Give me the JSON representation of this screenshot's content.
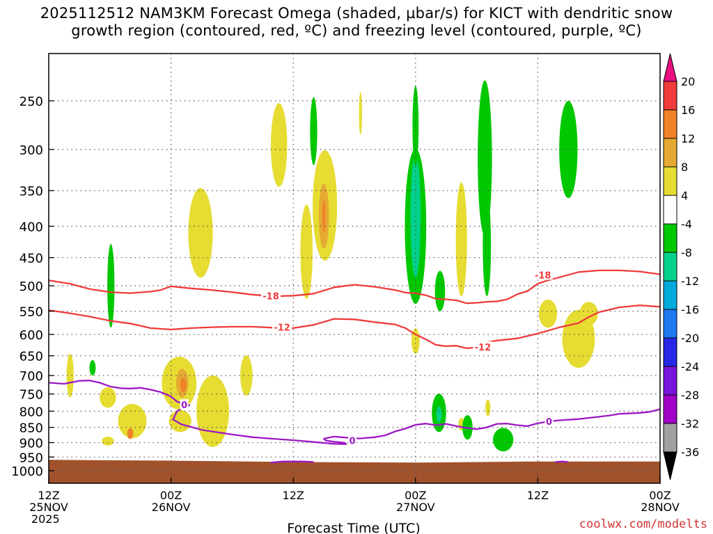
{
  "title_line1": "2025112512 NAM3KM Forecast Omega (shaded, µbar/s) for KICT with dendritic snow",
  "title_line2": "growth region (contoured, red, ºC) and freezing level (contoured, purple, ºC)",
  "credit": "coolwx.com/modelts",
  "chart_data": {
    "type": "heatmap",
    "title": "2025112512 NAM3KM Forecast Omega (shaded, µbar/s) for KICT with dendritic snow growth region (contoured, red, ºC) and freezing level (contoured, purple, ºC)",
    "xlabel": "Forecast Time (UTC)",
    "ylabel": "",
    "x_unit": "forecast hour",
    "xlim": [
      0,
      60
    ],
    "y_unit": "hPa",
    "ylim": [
      1050,
      200
    ],
    "y_ticks": [
      250,
      300,
      350,
      400,
      450,
      500,
      550,
      600,
      650,
      700,
      750,
      800,
      850,
      900,
      950,
      1000
    ],
    "x_ticks": [
      {
        "hour": 0,
        "lines": [
          "12Z",
          "25NOV",
          "2025"
        ]
      },
      {
        "hour": 12,
        "lines": [
          "00Z",
          "26NOV"
        ]
      },
      {
        "hour": 24,
        "lines": [
          "12Z"
        ]
      },
      {
        "hour": 36,
        "lines": [
          "00Z",
          "27NOV"
        ]
      },
      {
        "hour": 48,
        "lines": [
          "12Z"
        ]
      },
      {
        "hour": 60,
        "lines": [
          "00Z",
          "28NOV"
        ]
      }
    ],
    "grid": true,
    "colorbar": {
      "labels": [
        "20",
        "16",
        "12",
        "8",
        "4",
        "-4",
        "-8",
        "-12",
        "-16",
        "-20",
        "-24",
        "-28",
        "-32",
        "-36"
      ],
      "colors": [
        "#e8117f",
        "#f03c3c",
        "#f08228",
        "#e6aa32",
        "#e6dc32",
        "#ffffff",
        "#00c800",
        "#00d28c",
        "#00aadc",
        "#1e78f0",
        "#2828e6",
        "#7814dc",
        "#a000c8",
        "#a0a0a0",
        "#000000"
      ]
    },
    "omega_regions": [
      {
        "x": 2.1,
        "p": 700,
        "dx": 0.35,
        "dp": 60,
        "color": "#e6dc32"
      },
      {
        "x": 4.3,
        "p": 680,
        "dx": 0.3,
        "dp": 20,
        "color": "#00c800"
      },
      {
        "x": 6.1,
        "p": 500,
        "dx": 0.35,
        "dp": 85,
        "color": "#00c800"
      },
      {
        "x": 5.8,
        "p": 760,
        "dx": 0.8,
        "dp": 30,
        "color": "#e6dc32"
      },
      {
        "x": 5.8,
        "p": 895,
        "dx": 0.6,
        "dp": 15,
        "color": "#e6dc32"
      },
      {
        "x": 8.2,
        "p": 830,
        "dx": 1.4,
        "dp": 55,
        "color": "#e6dc32"
      },
      {
        "x": 8.0,
        "p": 870,
        "dx": 0.3,
        "dp": 18,
        "color": "#f08228"
      },
      {
        "x": 12.8,
        "p": 720,
        "dx": 1.7,
        "dp": 75,
        "color": "#e6dc32"
      },
      {
        "x": 13.1,
        "p": 720,
        "dx": 0.6,
        "dp": 40,
        "color": "#e6aa32"
      },
      {
        "x": 13.2,
        "p": 725,
        "dx": 0.3,
        "dp": 20,
        "color": "#f08228"
      },
      {
        "x": 12.9,
        "p": 830,
        "dx": 1.1,
        "dp": 35,
        "color": "#e6dc32"
      },
      {
        "x": 14.9,
        "p": 410,
        "dx": 1.2,
        "dp": 75,
        "color": "#e6dc32"
      },
      {
        "x": 16.1,
        "p": 800,
        "dx": 1.6,
        "dp": 115,
        "color": "#e6dc32"
      },
      {
        "x": 19.4,
        "p": 700,
        "dx": 0.6,
        "dp": 55,
        "color": "#e6dc32"
      },
      {
        "x": 22.6,
        "p": 295,
        "dx": 0.8,
        "dp": 50,
        "color": "#e6dc32"
      },
      {
        "x": 26.0,
        "p": 280,
        "dx": 0.35,
        "dp": 38,
        "color": "#00c800"
      },
      {
        "x": 25.3,
        "p": 440,
        "dx": 0.6,
        "dp": 85,
        "color": "#e6dc32"
      },
      {
        "x": 27.1,
        "p": 370,
        "dx": 1.2,
        "dp": 85,
        "color": "#e6dc32"
      },
      {
        "x": 27.0,
        "p": 385,
        "dx": 0.5,
        "dp": 50,
        "color": "#e6aa32"
      },
      {
        "x": 27.0,
        "p": 385,
        "dx": 0.15,
        "dp": 25,
        "color": "#f08228"
      },
      {
        "x": 30.6,
        "p": 262,
        "dx": 0.15,
        "dp": 22,
        "color": "#e6dc32"
      },
      {
        "x": 36.0,
        "p": 400,
        "dx": 1.05,
        "dp": 135,
        "color": "#00c800"
      },
      {
        "x": 36.0,
        "p": 385,
        "dx": 0.5,
        "dp": 100,
        "color": "#00d28c"
      },
      {
        "x": 36.0,
        "p": 275,
        "dx": 0.3,
        "dp": 45,
        "color": "#00c800"
      },
      {
        "x": 36.0,
        "p": 615,
        "dx": 0.4,
        "dp": 30,
        "color": "#e6dc32"
      },
      {
        "x": 38.4,
        "p": 510,
        "dx": 0.5,
        "dp": 40,
        "color": "#00c800"
      },
      {
        "x": 38.3,
        "p": 805,
        "dx": 0.7,
        "dp": 60,
        "color": "#00c800"
      },
      {
        "x": 38.3,
        "p": 810,
        "dx": 0.25,
        "dp": 25,
        "color": "#00d28c"
      },
      {
        "x": 40.5,
        "p": 420,
        "dx": 0.55,
        "dp": 100,
        "color": "#e6dc32"
      },
      {
        "x": 40.5,
        "p": 840,
        "dx": 0.3,
        "dp": 20,
        "color": "#e6dc32"
      },
      {
        "x": 41.1,
        "p": 850,
        "dx": 0.5,
        "dp": 40,
        "color": "#00c800"
      },
      {
        "x": 42.8,
        "p": 310,
        "dx": 0.7,
        "dp": 105,
        "color": "#00c800"
      },
      {
        "x": 43.0,
        "p": 430,
        "dx": 0.4,
        "dp": 90,
        "color": "#00c800"
      },
      {
        "x": 43.1,
        "p": 790,
        "dx": 0.25,
        "dp": 25,
        "color": "#e6dc32"
      },
      {
        "x": 44.6,
        "p": 890,
        "dx": 1.0,
        "dp": 40,
        "color": "#00c800"
      },
      {
        "x": 49.0,
        "p": 555,
        "dx": 0.9,
        "dp": 30,
        "color": "#e6dc32"
      },
      {
        "x": 51.0,
        "p": 300,
        "dx": 0.9,
        "dp": 60,
        "color": "#00c800"
      },
      {
        "x": 52.0,
        "p": 610,
        "dx": 1.6,
        "dp": 70,
        "color": "#e6dc32"
      },
      {
        "x": 53.0,
        "p": 555,
        "dx": 0.9,
        "dp": 25,
        "color": "#e6dc32"
      }
    ],
    "contours_red": [
      {
        "label": "-18",
        "label_positions": [
          {
            "x": 21.8,
            "p": 519
          },
          {
            "x": 48.5,
            "p": 480
          }
        ],
        "points": [
          [
            0,
            490
          ],
          [
            2,
            496
          ],
          [
            4,
            506
          ],
          [
            6,
            512
          ],
          [
            8,
            514
          ],
          [
            10,
            511
          ],
          [
            11,
            508
          ],
          [
            12,
            501
          ],
          [
            14,
            505
          ],
          [
            16,
            508
          ],
          [
            18,
            512
          ],
          [
            20,
            517
          ],
          [
            22,
            520
          ],
          [
            24,
            519
          ],
          [
            26,
            515
          ],
          [
            28,
            503
          ],
          [
            30,
            498
          ],
          [
            32,
            502
          ],
          [
            34,
            508
          ],
          [
            35,
            513
          ],
          [
            36,
            514
          ],
          [
            37,
            518
          ],
          [
            38,
            525
          ],
          [
            39,
            526
          ],
          [
            40,
            528
          ],
          [
            41,
            534
          ],
          [
            42,
            533
          ],
          [
            43,
            531
          ],
          [
            44,
            530
          ],
          [
            45,
            526
          ],
          [
            46,
            516
          ],
          [
            47,
            510
          ],
          [
            48,
            496
          ],
          [
            49,
            490
          ],
          [
            50,
            485
          ],
          [
            52,
            475
          ],
          [
            54,
            472
          ],
          [
            56,
            472
          ],
          [
            58,
            474
          ],
          [
            60,
            479
          ]
        ]
      },
      {
        "label": "-12",
        "label_positions": [
          {
            "x": 22.9,
            "p": 584
          },
          {
            "x": 42.6,
            "p": 629
          }
        ],
        "points": [
          [
            0,
            548
          ],
          [
            2,
            554
          ],
          [
            4,
            561
          ],
          [
            6,
            570
          ],
          [
            8,
            576
          ],
          [
            10,
            586
          ],
          [
            12,
            589
          ],
          [
            14,
            586
          ],
          [
            16,
            584
          ],
          [
            18,
            583
          ],
          [
            20,
            583
          ],
          [
            22,
            585
          ],
          [
            24,
            586
          ],
          [
            26,
            579
          ],
          [
            28,
            566
          ],
          [
            30,
            567
          ],
          [
            32,
            573
          ],
          [
            34,
            578
          ],
          [
            35,
            586
          ],
          [
            36,
            600
          ],
          [
            37,
            611
          ],
          [
            38,
            624
          ],
          [
            39,
            627
          ],
          [
            40,
            626
          ],
          [
            41,
            632
          ],
          [
            42,
            630
          ],
          [
            43,
            618
          ],
          [
            44,
            614
          ],
          [
            46,
            609
          ],
          [
            48,
            598
          ],
          [
            50,
            585
          ],
          [
            52,
            575
          ],
          [
            53,
            562
          ],
          [
            54,
            552
          ],
          [
            56,
            542
          ],
          [
            58,
            538
          ],
          [
            60,
            541
          ]
        ]
      }
    ],
    "contours_purple": [
      {
        "label": "0",
        "label_positions": [
          {
            "x": 13.3,
            "p": 781
          },
          {
            "x": 29.8,
            "p": 893
          },
          {
            "x": 49.1,
            "p": 831
          }
        ],
        "points": [
          [
            0,
            719
          ],
          [
            1.5,
            722
          ],
          [
            3,
            714
          ],
          [
            4,
            713
          ],
          [
            5,
            719
          ],
          [
            6,
            729
          ],
          [
            7,
            734
          ],
          [
            8,
            735
          ],
          [
            9,
            733
          ],
          [
            10,
            738
          ],
          [
            11,
            745
          ],
          [
            12,
            757
          ],
          [
            12.6,
            772
          ],
          [
            13.2,
            778
          ],
          [
            13.6,
            779
          ],
          [
            13.8,
            783
          ],
          [
            13.3,
            787
          ],
          [
            12.6,
            800
          ],
          [
            12.2,
            825
          ],
          [
            13,
            840
          ],
          [
            15,
            858
          ],
          [
            18,
            873
          ],
          [
            20,
            882
          ],
          [
            22,
            887
          ],
          [
            24,
            892
          ],
          [
            26,
            898
          ],
          [
            28,
            904
          ],
          [
            29.2,
            905
          ],
          [
            29.0,
            900
          ],
          [
            28,
            897
          ],
          [
            27.2,
            893
          ],
          [
            27.0,
            887
          ],
          [
            28,
            880
          ],
          [
            29,
            883
          ],
          [
            30.5,
            886
          ],
          [
            32,
            882
          ],
          [
            33,
            876
          ],
          [
            34,
            863
          ],
          [
            35,
            854
          ],
          [
            36,
            842
          ],
          [
            37,
            838
          ],
          [
            38,
            843
          ],
          [
            39,
            839
          ],
          [
            40,
            846
          ],
          [
            41,
            852
          ],
          [
            42,
            856
          ],
          [
            43,
            850
          ],
          [
            44,
            839
          ],
          [
            45,
            838
          ],
          [
            46,
            843
          ],
          [
            47,
            846
          ],
          [
            48,
            837
          ],
          [
            49,
            832
          ],
          [
            50,
            828
          ],
          [
            52,
            824
          ],
          [
            54,
            817
          ],
          [
            55,
            813
          ],
          [
            56,
            808
          ],
          [
            58,
            805
          ],
          [
            59,
            802
          ],
          [
            60,
            794
          ]
        ]
      },
      {
        "label": "",
        "label_positions": [],
        "points": [
          [
            21.8,
            970
          ],
          [
            23,
            966
          ],
          [
            25,
            966
          ],
          [
            26,
            968
          ]
        ]
      },
      {
        "label": "",
        "label_positions": [],
        "points": [
          [
            49.7,
            968
          ],
          [
            50.4,
            966
          ],
          [
            51,
            968
          ]
        ]
      }
    ],
    "terrain": {
      "color": "#a0522d",
      "surface_p": [
        [
          0,
          960
        ],
        [
          12,
          963
        ],
        [
          24,
          968
        ],
        [
          36,
          970
        ],
        [
          48,
          966
        ],
        [
          60,
          966
        ]
      ]
    }
  }
}
